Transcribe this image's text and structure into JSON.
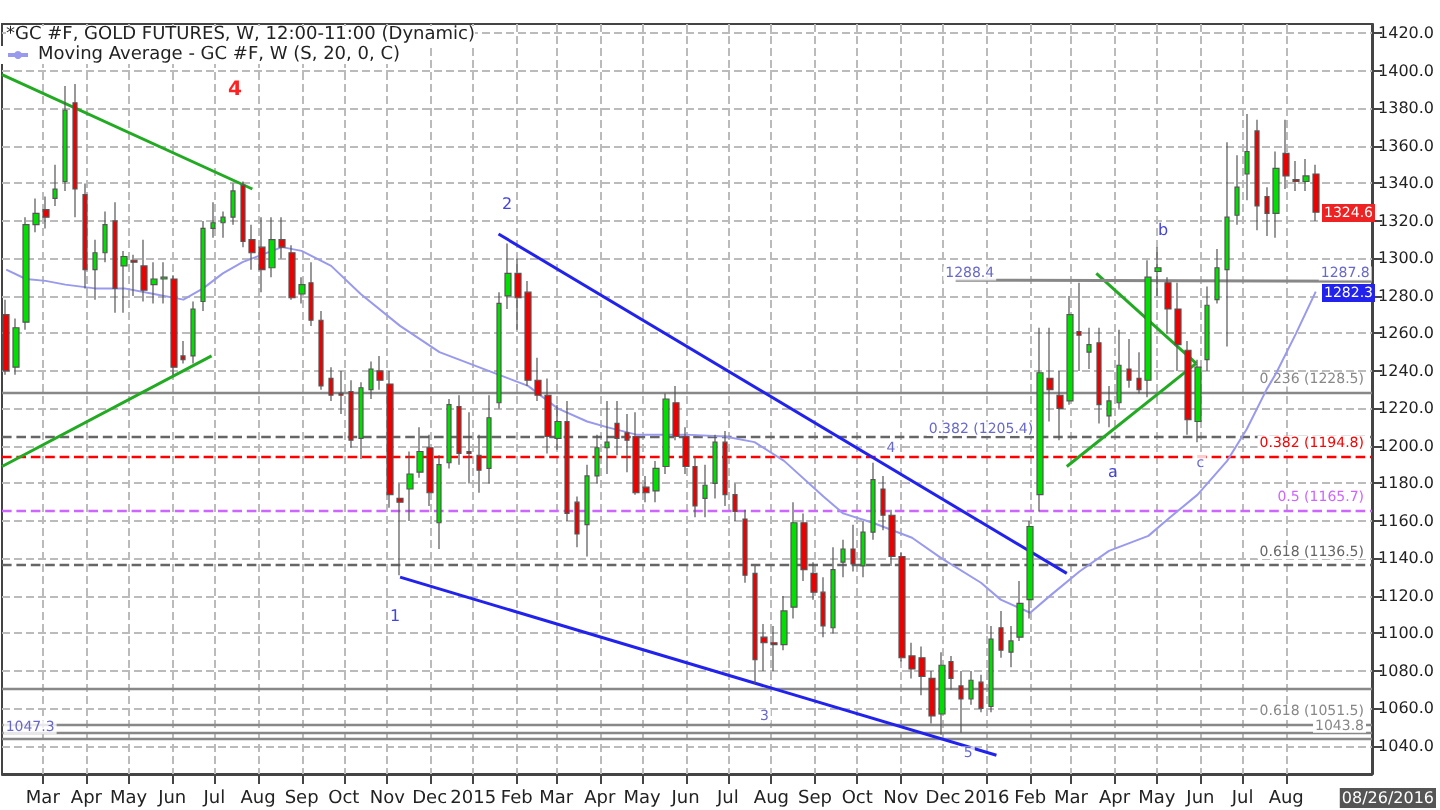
{
  "chart_data": {
    "type": "candlestick",
    "title": "*GC #F, GOLD FUTURES, W, 12:00-11:00 (Dynamic)",
    "x": [
      "2014-02-03",
      "2014-02-10",
      "2014-02-17",
      "2014-02-24",
      "2014-03-03",
      "2014-03-10",
      "2014-03-17",
      "2014-03-24",
      "2014-03-31",
      "2014-04-07",
      "2014-04-14",
      "2014-04-21",
      "2014-04-28",
      "2014-05-05",
      "2014-05-12",
      "2014-05-19",
      "2014-05-26",
      "2014-06-02",
      "2014-06-09",
      "2014-06-16",
      "2014-06-23",
      "2014-06-30",
      "2014-07-07",
      "2014-07-14",
      "2014-07-21",
      "2014-07-28",
      "2014-08-04",
      "2014-08-11",
      "2014-08-18",
      "2014-08-25",
      "2014-09-01",
      "2014-09-08",
      "2014-09-15",
      "2014-09-22",
      "2014-09-29",
      "2014-10-06",
      "2014-10-13",
      "2014-10-20",
      "2014-10-27",
      "2014-11-03",
      "2014-11-10",
      "2014-11-17",
      "2014-11-24",
      "2014-12-01",
      "2014-12-08",
      "2014-12-15",
      "2014-12-22",
      "2014-12-29",
      "2015-01-05",
      "2015-01-12",
      "2015-01-19",
      "2015-01-26",
      "2015-02-02",
      "2015-02-09",
      "2015-02-16",
      "2015-02-23",
      "2015-03-02",
      "2015-03-09",
      "2015-03-16",
      "2015-03-23",
      "2015-03-30",
      "2015-04-06",
      "2015-04-13",
      "2015-04-20",
      "2015-04-27",
      "2015-05-04",
      "2015-05-11",
      "2015-05-18",
      "2015-05-25",
      "2015-06-01",
      "2015-06-08",
      "2015-06-15",
      "2015-06-22",
      "2015-06-29",
      "2015-07-06",
      "2015-07-13",
      "2015-07-20",
      "2015-07-27",
      "2015-08-03",
      "2015-08-10",
      "2015-08-17",
      "2015-08-24",
      "2015-08-31",
      "2015-09-07",
      "2015-09-14",
      "2015-09-21",
      "2015-09-28",
      "2015-10-05",
      "2015-10-12",
      "2015-10-19",
      "2015-10-26",
      "2015-11-02",
      "2015-11-09",
      "2015-11-16",
      "2015-11-23",
      "2015-11-30",
      "2015-12-07",
      "2015-12-14",
      "2015-12-21",
      "2015-12-28",
      "2016-01-04",
      "2016-01-11",
      "2016-01-18",
      "2016-01-25",
      "2016-02-01",
      "2016-02-08",
      "2016-02-15",
      "2016-02-22",
      "2016-02-29",
      "2016-03-07",
      "2016-03-14",
      "2016-03-21",
      "2016-03-28",
      "2016-04-04",
      "2016-04-11",
      "2016-04-18",
      "2016-04-25",
      "2016-05-02",
      "2016-05-09",
      "2016-05-16",
      "2016-05-23",
      "2016-05-30",
      "2016-06-06",
      "2016-06-13",
      "2016-06-20",
      "2016-06-27",
      "2016-07-04",
      "2016-07-11",
      "2016-07-18",
      "2016-07-25",
      "2016-08-01",
      "2016-08-08",
      "2016-08-15",
      "2016-08-22"
    ],
    "ohlc": [
      [
        1270,
        1278,
        1238,
        1240
      ],
      [
        1242,
        1268,
        1238,
        1263
      ],
      [
        1266,
        1322,
        1262,
        1318
      ],
      [
        1318,
        1332,
        1314,
        1324
      ],
      [
        1326,
        1333,
        1316,
        1322
      ],
      [
        1332,
        1350,
        1328,
        1337
      ],
      [
        1341,
        1392,
        1336,
        1379
      ],
      [
        1383,
        1393,
        1322,
        1337
      ],
      [
        1334,
        1340,
        1284,
        1294
      ],
      [
        1294,
        1310,
        1278,
        1303
      ],
      [
        1303,
        1325,
        1298,
        1318
      ],
      [
        1320,
        1330,
        1271,
        1284
      ],
      [
        1296,
        1304,
        1271,
        1301
      ],
      [
        1299,
        1302,
        1280,
        1298
      ],
      [
        1296,
        1310,
        1277,
        1283
      ],
      [
        1286,
        1298,
        1276,
        1289
      ],
      [
        1289,
        1298,
        1276,
        1290
      ],
      [
        1289,
        1291,
        1238,
        1242
      ],
      [
        1248,
        1256,
        1244,
        1246
      ],
      [
        1248,
        1277,
        1244,
        1273
      ],
      [
        1277,
        1320,
        1272,
        1316
      ],
      [
        1316,
        1330,
        1311,
        1319
      ],
      [
        1319,
        1325,
        1311,
        1322
      ],
      [
        1322,
        1340,
        1318,
        1336
      ],
      [
        1339,
        1341,
        1306,
        1309
      ],
      [
        1310,
        1318,
        1294,
        1303
      ],
      [
        1306,
        1322,
        1282,
        1294
      ],
      [
        1295,
        1322,
        1290,
        1310
      ],
      [
        1310,
        1322,
        1300,
        1306
      ],
      [
        1303,
        1307,
        1278,
        1279
      ],
      [
        1281,
        1290,
        1276,
        1286
      ],
      [
        1287,
        1298,
        1264,
        1267
      ],
      [
        1267,
        1272,
        1230,
        1232
      ],
      [
        1236,
        1242,
        1224,
        1227
      ],
      [
        1228,
        1240,
        1217,
        1227
      ],
      [
        1229,
        1235,
        1199,
        1203
      ],
      [
        1204,
        1234,
        1193,
        1231
      ],
      [
        1230,
        1245,
        1225,
        1241
      ],
      [
        1240,
        1248,
        1230,
        1235
      ],
      [
        1233,
        1240,
        1167,
        1174
      ],
      [
        1172,
        1180,
        1131,
        1170
      ],
      [
        1177,
        1197,
        1160,
        1185
      ],
      [
        1186,
        1210,
        1183,
        1197
      ],
      [
        1199,
        1206,
        1168,
        1175
      ],
      [
        1159,
        1195,
        1145,
        1190
      ],
      [
        1191,
        1225,
        1188,
        1222
      ],
      [
        1221,
        1227,
        1190,
        1196
      ],
      [
        1197,
        1218,
        1180,
        1196
      ],
      [
        1195,
        1206,
        1175,
        1187
      ],
      [
        1188,
        1227,
        1180,
        1215
      ],
      [
        1223,
        1282,
        1220,
        1276
      ],
      [
        1280,
        1308,
        1273,
        1292
      ],
      [
        1292,
        1300,
        1262,
        1279
      ],
      [
        1282,
        1288,
        1232,
        1235
      ],
      [
        1235,
        1247,
        1224,
        1227
      ],
      [
        1227,
        1236,
        1196,
        1205
      ],
      [
        1204,
        1222,
        1198,
        1213
      ],
      [
        1213,
        1224,
        1160,
        1164
      ],
      [
        1170,
        1173,
        1146,
        1153
      ],
      [
        1158,
        1190,
        1141,
        1184
      ],
      [
        1184,
        1206,
        1180,
        1199
      ],
      [
        1199,
        1224,
        1185,
        1202
      ],
      [
        1212,
        1224,
        1195,
        1204
      ],
      [
        1207,
        1217,
        1186,
        1203
      ],
      [
        1205,
        1218,
        1174,
        1175
      ],
      [
        1178,
        1184,
        1170,
        1175
      ],
      [
        1176,
        1192,
        1170,
        1188
      ],
      [
        1189,
        1228,
        1185,
        1225
      ],
      [
        1223,
        1232,
        1203,
        1205
      ],
      [
        1205,
        1210,
        1185,
        1189
      ],
      [
        1189,
        1194,
        1162,
        1168
      ],
      [
        1172,
        1190,
        1162,
        1179
      ],
      [
        1180,
        1206,
        1172,
        1202
      ],
      [
        1202,
        1208,
        1168,
        1174
      ],
      [
        1174,
        1180,
        1160,
        1165
      ],
      [
        1161,
        1166,
        1127,
        1131
      ],
      [
        1132,
        1136,
        1073,
        1086
      ],
      [
        1098,
        1105,
        1080,
        1095
      ],
      [
        1095,
        1104,
        1080,
        1094
      ],
      [
        1094,
        1120,
        1091,
        1112
      ],
      [
        1114,
        1170,
        1108,
        1159
      ],
      [
        1159,
        1164,
        1128,
        1134
      ],
      [
        1132,
        1138,
        1118,
        1122
      ],
      [
        1122,
        1130,
        1098,
        1104
      ],
      [
        1103,
        1146,
        1100,
        1134
      ],
      [
        1138,
        1150,
        1130,
        1145
      ],
      [
        1145,
        1158,
        1133,
        1137
      ],
      [
        1136,
        1160,
        1130,
        1154
      ],
      [
        1154,
        1191,
        1150,
        1182
      ],
      [
        1177,
        1184,
        1155,
        1163
      ],
      [
        1163,
        1166,
        1136,
        1141
      ],
      [
        1141,
        1143,
        1085,
        1087
      ],
      [
        1088,
        1095,
        1076,
        1081
      ],
      [
        1087,
        1093,
        1067,
        1077
      ],
      [
        1076,
        1080,
        1052,
        1056
      ],
      [
        1057,
        1090,
        1046,
        1083
      ],
      [
        1085,
        1088,
        1070,
        1076
      ],
      [
        1072,
        1080,
        1047,
        1065
      ],
      [
        1065,
        1080,
        1062,
        1075
      ],
      [
        1074,
        1078,
        1058,
        1060
      ],
      [
        1061,
        1104,
        1058,
        1097
      ],
      [
        1103,
        1112,
        1087,
        1091
      ],
      [
        1090,
        1104,
        1082,
        1096
      ],
      [
        1098,
        1128,
        1096,
        1116
      ],
      [
        1118,
        1160,
        1108,
        1157
      ],
      [
        1174,
        1263,
        1165,
        1239
      ],
      [
        1236,
        1263,
        1213,
        1230
      ],
      [
        1227,
        1240,
        1203,
        1220
      ],
      [
        1224,
        1280,
        1222,
        1270
      ],
      [
        1261,
        1287,
        1240,
        1259
      ],
      [
        1250,
        1263,
        1241,
        1254
      ],
      [
        1255,
        1263,
        1212,
        1222
      ],
      [
        1216,
        1232,
        1210,
        1224
      ],
      [
        1223,
        1262,
        1220,
        1243
      ],
      [
        1241,
        1257,
        1231,
        1235
      ],
      [
        1236,
        1250,
        1228,
        1230
      ],
      [
        1235,
        1299,
        1226,
        1290
      ],
      [
        1293,
        1306,
        1280,
        1295
      ],
      [
        1287,
        1290,
        1260,
        1273
      ],
      [
        1273,
        1287,
        1240,
        1254
      ],
      [
        1251,
        1256,
        1206,
        1214
      ],
      [
        1213,
        1246,
        1202,
        1242
      ],
      [
        1246,
        1285,
        1240,
        1275
      ],
      [
        1278,
        1305,
        1276,
        1295
      ],
      [
        1294,
        1362,
        1253,
        1322
      ],
      [
        1323,
        1355,
        1318,
        1338
      ],
      [
        1345,
        1377,
        1331,
        1357
      ],
      [
        1368,
        1374,
        1315,
        1328
      ],
      [
        1333,
        1338,
        1312,
        1324
      ],
      [
        1324,
        1357,
        1311,
        1348
      ],
      [
        1356,
        1374,
        1337,
        1344
      ],
      [
        1342,
        1352,
        1336,
        1341
      ],
      [
        1341,
        1353,
        1336,
        1344
      ],
      [
        1345,
        1350,
        1320,
        1324.6
      ]
    ],
    "series": [
      {
        "type": "line",
        "name": "Moving Average - GC #F, W (S, 20, 0, C)",
        "color": "#9999ee",
        "x": [
          "2014-02-03",
          "2014-02-17",
          "2014-03-03",
          "2014-03-17",
          "2014-04-07",
          "2014-04-28",
          "2014-05-19",
          "2014-06-09",
          "2014-06-23",
          "2014-07-07",
          "2014-07-21",
          "2014-08-04",
          "2014-08-18",
          "2014-09-01",
          "2014-09-22",
          "2014-10-13",
          "2014-11-10",
          "2014-12-08",
          "2015-01-12",
          "2015-02-09",
          "2015-03-02",
          "2015-03-23",
          "2015-04-06",
          "2015-04-27",
          "2015-06-01",
          "2015-06-29",
          "2015-07-20",
          "2015-08-10",
          "2015-09-07",
          "2015-09-21",
          "2015-10-12",
          "2015-11-09",
          "2015-11-30",
          "2015-12-28",
          "2016-01-11",
          "2016-02-01",
          "2016-02-15",
          "2016-03-07",
          "2016-03-28",
          "2016-04-25",
          "2016-05-09",
          "2016-05-30",
          "2016-06-20",
          "2016-07-04",
          "2016-07-18",
          "2016-07-25",
          "2016-08-08",
          "2016-08-22"
        ],
        "values": [
          1294,
          1289,
          1288,
          1286,
          1284,
          1284,
          1281,
          1278,
          1284,
          1292,
          1298,
          1302,
          1306,
          1304,
          1296,
          1281,
          1264,
          1250,
          1240,
          1232,
          1220,
          1213,
          1210,
          1206,
          1206,
          1205,
          1202,
          1192,
          1173,
          1164,
          1159,
          1151,
          1140,
          1127,
          1118,
          1111,
          1120,
          1133,
          1144,
          1152,
          1161,
          1174,
          1192,
          1209,
          1230,
          1239,
          1260,
          1282.3
        ]
      },
      {
        "type": "line",
        "color": "#22aa22",
        "x": [
          "2014-01-31",
          "2014-07-28"
        ],
        "values": [
          1398,
          1337
        ]
      },
      {
        "type": "line",
        "color": "#22aa22",
        "x": [
          "2014-01-31",
          "2014-06-29"
        ],
        "values": [
          1189,
          1248
        ]
      },
      {
        "type": "line",
        "color": "#2222ee",
        "x": [
          "2015-01-19",
          "2016-02-27"
        ],
        "values": [
          1313,
          1132
        ]
      },
      {
        "type": "line",
        "color": "#2222ee",
        "x": [
          "2014-11-10",
          "2016-01-08"
        ],
        "values": [
          1130,
          1035
        ]
      },
      {
        "type": "line",
        "color": "#22aa22",
        "x": [
          "2016-03-19",
          "2016-05-29"
        ],
        "values": [
          1292,
          1244
        ]
      },
      {
        "type": "line",
        "color": "#22aa22",
        "x": [
          "2016-02-27",
          "2016-05-29"
        ],
        "values": [
          1189,
          1244
        ]
      },
      {
        "type": "line",
        "color": "#888888",
        "x": [
          "2015-12-10",
          "2016-10-01"
        ],
        "values": [
          1288.4,
          1287.8
        ]
      }
    ],
    "xlim": [
      "2014-01-31",
      "2016-10-01"
    ],
    "ylim": [
      1025,
      1425
    ],
    "yticks": [
      {
        "value": 1040,
        "label": "1040.0"
      },
      {
        "value": 1060,
        "label": "1060.0"
      },
      {
        "value": 1080,
        "label": "1080.0"
      },
      {
        "value": 1100,
        "label": "1100.0"
      },
      {
        "value": 1120,
        "label": "1120.0"
      },
      {
        "value": 1140,
        "label": "1140.0"
      },
      {
        "value": 1160,
        "label": "1160.0"
      },
      {
        "value": 1180,
        "label": "1180.0"
      },
      {
        "value": 1200,
        "label": "1200.0"
      },
      {
        "value": 1220,
        "label": "1220.0"
      },
      {
        "value": 1240,
        "label": "1240.0"
      },
      {
        "value": 1260,
        "label": "1260.0"
      },
      {
        "value": 1280,
        "label": "1280.0"
      },
      {
        "value": 1300,
        "label": "1300.0"
      },
      {
        "value": 1320,
        "label": "1320.0"
      },
      {
        "value": 1340,
        "label": "1340.0"
      },
      {
        "value": 1360,
        "label": "1360.0"
      },
      {
        "value": 1380,
        "label": "1380.0"
      },
      {
        "value": 1400,
        "label": "1400.0"
      },
      {
        "value": 1420,
        "label": "1420.0"
      }
    ],
    "xticks": [
      {
        "value": "2014-03-01",
        "label": "Mar"
      },
      {
        "value": "2014-04-01",
        "label": "Apr"
      },
      {
        "value": "2014-05-01",
        "label": "May"
      },
      {
        "value": "2014-06-01",
        "label": "Jun"
      },
      {
        "value": "2014-07-01",
        "label": "Jul"
      },
      {
        "value": "2014-08-01",
        "label": "Aug"
      },
      {
        "value": "2014-09-01",
        "label": "Sep"
      },
      {
        "value": "2014-10-01",
        "label": "Oct"
      },
      {
        "value": "2014-11-01",
        "label": "Nov"
      },
      {
        "value": "2014-12-01",
        "label": "Dec"
      },
      {
        "value": "2015-01-01",
        "label": "2015"
      },
      {
        "value": "2015-02-01",
        "label": "Feb"
      },
      {
        "value": "2015-03-01",
        "label": "Mar"
      },
      {
        "value": "2015-04-01",
        "label": "Apr"
      },
      {
        "value": "2015-05-01",
        "label": "May"
      },
      {
        "value": "2015-06-01",
        "label": "Jun"
      },
      {
        "value": "2015-07-01",
        "label": "Jul"
      },
      {
        "value": "2015-08-01",
        "label": "Aug"
      },
      {
        "value": "2015-09-01",
        "label": "Sep"
      },
      {
        "value": "2015-10-01",
        "label": "Oct"
      },
      {
        "value": "2015-11-01",
        "label": "Nov"
      },
      {
        "value": "2015-12-01",
        "label": "Dec"
      },
      {
        "value": "2016-01-01",
        "label": "2016"
      },
      {
        "value": "2016-02-01",
        "label": "Feb"
      },
      {
        "value": "2016-03-01",
        "label": "Mar"
      },
      {
        "value": "2016-04-01",
        "label": "Apr"
      },
      {
        "value": "2016-05-01",
        "label": "May"
      },
      {
        "value": "2016-06-01",
        "label": "Jun"
      },
      {
        "value": "2016-07-01",
        "label": "Jul"
      },
      {
        "value": "2016-08-01",
        "label": "Aug"
      }
    ],
    "grid": true,
    "legend": "top left",
    "ref_lines": [
      {
        "axis": "y",
        "value": 1228.5,
        "label": "0.236 (1228.5)",
        "color": "#888888",
        "line_style": "solid"
      },
      {
        "axis": "y",
        "value": 1205.4,
        "color": "#666666",
        "line_style": "dashed"
      },
      {
        "axis": "y",
        "value": 1194.8,
        "label": "0.382 (1194.8)",
        "color": "#ff0000",
        "line_style": "dashed"
      },
      {
        "axis": "y",
        "value": 1165.7,
        "label": "0.5 (1165.7)",
        "color": "#cc66ff",
        "line_style": "dashed"
      },
      {
        "axis": "y",
        "value": 1136.5,
        "label": "0.618 (1136.5)",
        "color": "#666666",
        "line_style": "dashed"
      },
      {
        "axis": "y",
        "value": 1071,
        "color": "#888888",
        "line_style": "solid"
      },
      {
        "axis": "y",
        "value": 1051.5,
        "label": "0.618 (1051.5)",
        "color": "#888888",
        "line_style": "solid"
      },
      {
        "axis": "y",
        "value": 1047.3,
        "color": "#888888",
        "line_style": "solid"
      },
      {
        "axis": "y",
        "value": 1043.8,
        "label": "1043.8",
        "color": "#888888",
        "line_style": "solid"
      }
    ],
    "annotations": [
      "4",
      "2",
      "1",
      {
        "text": "3",
        "x": "2015-07-27",
        "y": 1056
      },
      {
        "text": "4",
        "x": "2015-10-25",
        "y": 1199
      },
      {
        "text": "5",
        "x": "2015-12-19",
        "y": 1036
      },
      "a",
      "b",
      {
        "text": "c",
        "x": "2016-06-01",
        "y": 1191
      },
      {
        "text": "1288.4",
        "x": "2015-12-20",
        "y": 1292
      },
      {
        "text": "1287.8",
        "x": "2016-09-12",
        "y": 1292
      },
      {
        "text": "0.382 (1205.4)",
        "x": "2015-12-28",
        "y": 1209
      },
      {
        "text": "1047.3",
        "x": "2014-02-20",
        "y": 1050
      },
      "1324.6",
      "1282.3",
      "08/26/2016"
    ]
  }
}
